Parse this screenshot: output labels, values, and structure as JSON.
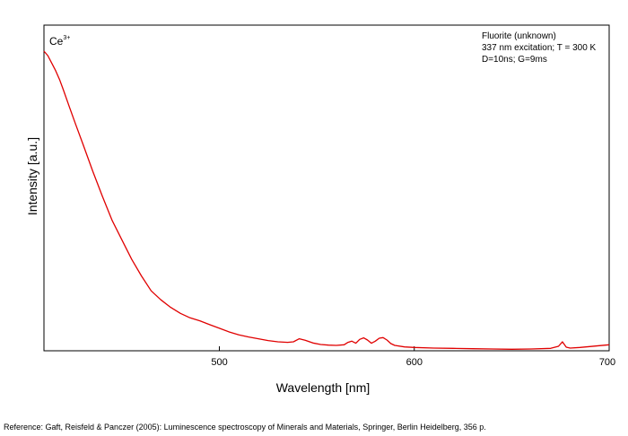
{
  "chart_data": {
    "type": "line",
    "xlabel": "Wavelength [nm]",
    "ylabel": "Intensity [a.u.]",
    "xlim": [
      410,
      700
    ],
    "ylim": [
      0,
      1
    ],
    "y_ticks_labeled": false,
    "xticks": [
      500,
      600,
      700
    ],
    "tick_direction": "inward",
    "grid": false,
    "series_color": "#e00000",
    "species": {
      "base": "Ce",
      "superscript": "3+"
    },
    "annotation_lines": [
      "Fluorite (unknown)",
      "337 nm excitation; T = 300 K",
      "D=10ns; G=9ms"
    ],
    "series": [
      {
        "x": [
          410,
          412,
          414,
          416,
          418,
          420,
          423,
          426,
          430,
          435,
          440,
          445,
          450,
          455,
          460,
          465,
          470,
          475,
          480,
          485,
          490,
          495,
          500,
          505,
          510,
          515,
          520,
          525,
          530,
          535,
          538,
          541,
          544,
          548,
          552,
          556,
          560,
          564,
          566,
          568,
          570,
          572,
          574,
          576,
          578,
          580,
          582,
          584,
          586,
          588,
          590,
          595,
          600,
          610,
          620,
          630,
          640,
          650,
          660,
          670,
          674,
          676,
          678,
          680,
          685,
          690,
          695,
          700
        ],
        "y": [
          1.0,
          0.985,
          0.96,
          0.935,
          0.905,
          0.87,
          0.815,
          0.76,
          0.69,
          0.6,
          0.515,
          0.435,
          0.37,
          0.305,
          0.25,
          0.2,
          0.17,
          0.145,
          0.125,
          0.11,
          0.1,
          0.087,
          0.075,
          0.063,
          0.053,
          0.046,
          0.04,
          0.034,
          0.03,
          0.028,
          0.03,
          0.04,
          0.035,
          0.026,
          0.021,
          0.019,
          0.018,
          0.02,
          0.028,
          0.032,
          0.025,
          0.038,
          0.043,
          0.036,
          0.025,
          0.032,
          0.042,
          0.044,
          0.036,
          0.024,
          0.018,
          0.013,
          0.011,
          0.009,
          0.008,
          0.007,
          0.006,
          0.005,
          0.006,
          0.008,
          0.015,
          0.03,
          0.012,
          0.009,
          0.011,
          0.014,
          0.017,
          0.02
        ]
      }
    ]
  },
  "reference": "Reference: Gaft, Reisfeld & Panczer (2005): Luminescence spectroscopy of Minerals and Materials, Springer, Berlin Heidelberg, 356 p."
}
